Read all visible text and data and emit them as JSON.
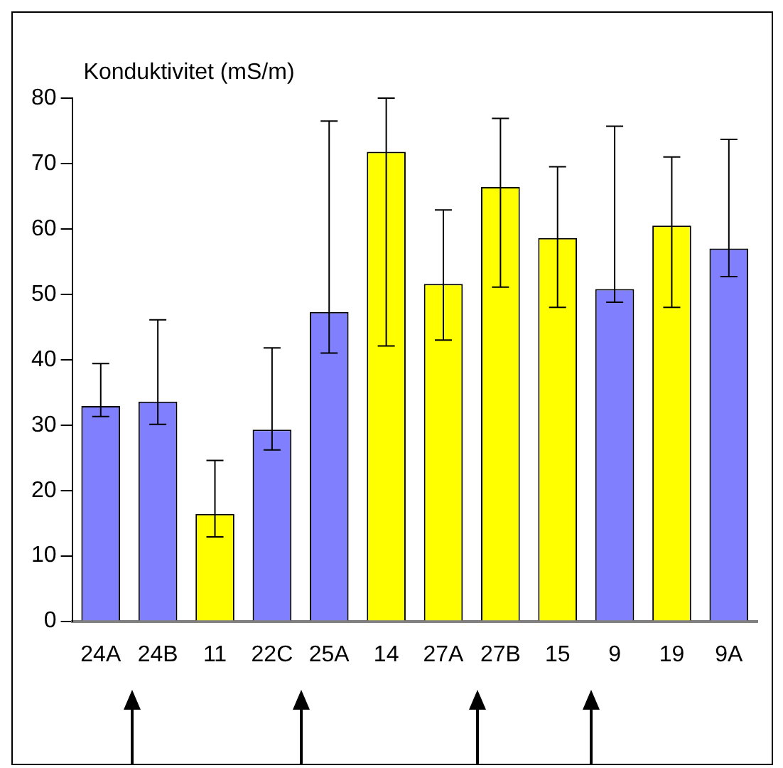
{
  "chart_data": {
    "type": "bar",
    "ylabel": "Konduktivitet (mS/m)",
    "categories": [
      "24A",
      "24B",
      "11",
      "22C",
      "25A",
      "14",
      "27A",
      "27B",
      "15",
      "9",
      "19",
      "9A"
    ],
    "values": [
      32.9,
      33.6,
      16.4,
      29.3,
      47.3,
      71.8,
      51.6,
      66.4,
      58.6,
      50.8,
      60.5,
      57.0
    ],
    "colors": [
      "#8080ff",
      "#8080ff",
      "#ffff00",
      "#8080ff",
      "#8080ff",
      "#ffff00",
      "#ffff00",
      "#ffff00",
      "#ffff00",
      "#8080ff",
      "#ffff00",
      "#8080ff"
    ],
    "errors": [
      [
        31.3,
        39.4
      ],
      [
        30.1,
        46.1
      ],
      [
        12.9,
        24.6
      ],
      [
        26.2,
        41.8
      ],
      [
        41.0,
        76.5
      ],
      [
        42.1,
        80
      ],
      [
        43.0,
        62.9
      ],
      [
        51.1,
        76.9
      ],
      [
        48.0,
        69.5
      ],
      [
        48.8,
        75.7
      ],
      [
        48.0,
        71.0
      ],
      [
        52.7,
        73.7
      ]
    ],
    "ylim": [
      0,
      80
    ],
    "yticks": [
      0,
      10,
      20,
      30,
      40,
      50,
      60,
      70,
      80
    ],
    "grid": false,
    "legend": false
  }
}
